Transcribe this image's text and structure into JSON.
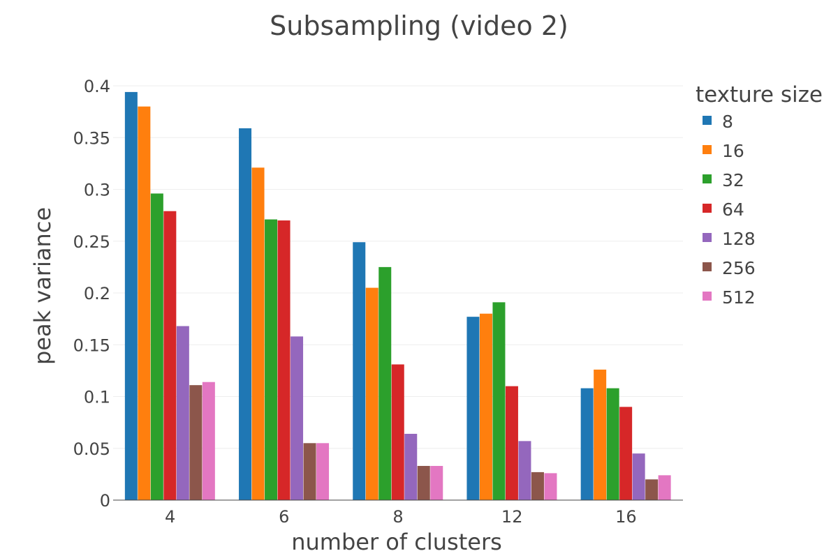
{
  "chart_data": {
    "type": "bar",
    "title": "Subsampling (video 2)",
    "xlabel": "number of clusters",
    "ylabel": "peak variance",
    "categories": [
      "4",
      "6",
      "8",
      "12",
      "16"
    ],
    "ylim": [
      0,
      0.4
    ],
    "yticks": [
      0,
      0.05,
      0.1,
      0.15,
      0.2,
      0.25,
      0.3,
      0.35,
      0.4
    ],
    "ytick_labels": [
      "0",
      "0.05",
      "0.1",
      "0.15",
      "0.2",
      "0.25",
      "0.3",
      "0.35",
      "0.4"
    ],
    "grid": true,
    "legend_title": "texture size",
    "legend_position": "right",
    "series": [
      {
        "name": "8",
        "color": "#1f77b4",
        "values": [
          0.394,
          0.359,
          0.249,
          0.177,
          0.108
        ]
      },
      {
        "name": "16",
        "color": "#ff7f0e",
        "values": [
          0.38,
          0.321,
          0.205,
          0.18,
          0.126
        ]
      },
      {
        "name": "32",
        "color": "#2ca02c",
        "values": [
          0.296,
          0.271,
          0.225,
          0.191,
          0.108
        ]
      },
      {
        "name": "64",
        "color": "#d62728",
        "values": [
          0.279,
          0.27,
          0.131,
          0.11,
          0.09
        ]
      },
      {
        "name": "128",
        "color": "#9467bd",
        "values": [
          0.168,
          0.158,
          0.064,
          0.057,
          0.045
        ]
      },
      {
        "name": "256",
        "color": "#8c564b",
        "values": [
          0.111,
          0.055,
          0.033,
          0.027,
          0.02
        ]
      },
      {
        "name": "512",
        "color": "#e377c2",
        "values": [
          0.114,
          0.055,
          0.033,
          0.026,
          0.024
        ]
      }
    ]
  }
}
